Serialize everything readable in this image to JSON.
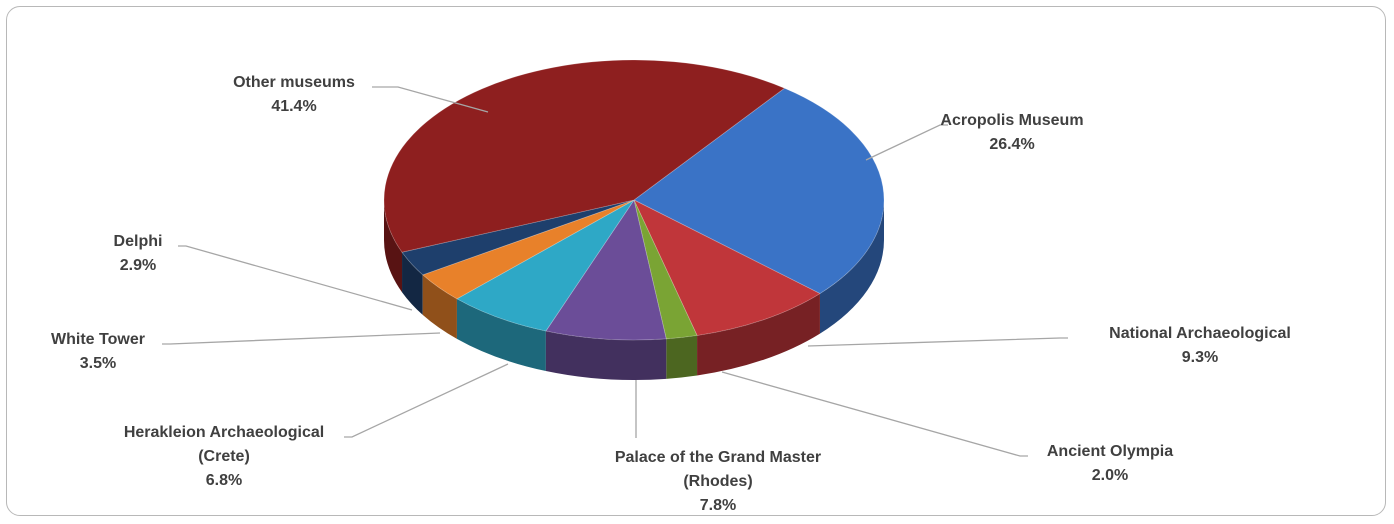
{
  "chart_data": {
    "type": "pie",
    "title": "",
    "categories": [
      "Acropolis Museum",
      "National Archaeological",
      "Ancient Olympia",
      "Palace of the Grand Master (Rhodes)",
      "Herakleion Archaeological (Crete)",
      "White Tower",
      "Delphi",
      "Other museums"
    ],
    "values": [
      26.4,
      9.3,
      2.0,
      7.8,
      6.8,
      3.5,
      2.9,
      41.4
    ],
    "value_labels": [
      "26.4%",
      "9.3%",
      "2.0%",
      "7.8%",
      "6.8%",
      "3.5%",
      "2.9%",
      "41.4%"
    ],
    "colors": [
      "#3a73c6",
      "#c0363a",
      "#7aa434",
      "#6b4d98",
      "#2ea8c6",
      "#e8812a",
      "#1e3f6c",
      "#8e1f1f"
    ],
    "label_lines": [
      [
        "Acropolis Museum",
        "26.4%"
      ],
      [
        "National Archaeological",
        "9.3%"
      ],
      [
        "Ancient Olympia",
        "2.0%"
      ],
      [
        "Palace of the Grand Master",
        "(Rhodes)",
        "7.8%"
      ],
      [
        "Herakleion Archaeological",
        "(Crete)",
        "6.8%"
      ],
      [
        "White Tower",
        "3.5%"
      ],
      [
        "Delphi",
        "2.9%"
      ],
      [
        "Other museums",
        "41.4%"
      ]
    ],
    "style": "3d-pie",
    "legend": "none"
  }
}
